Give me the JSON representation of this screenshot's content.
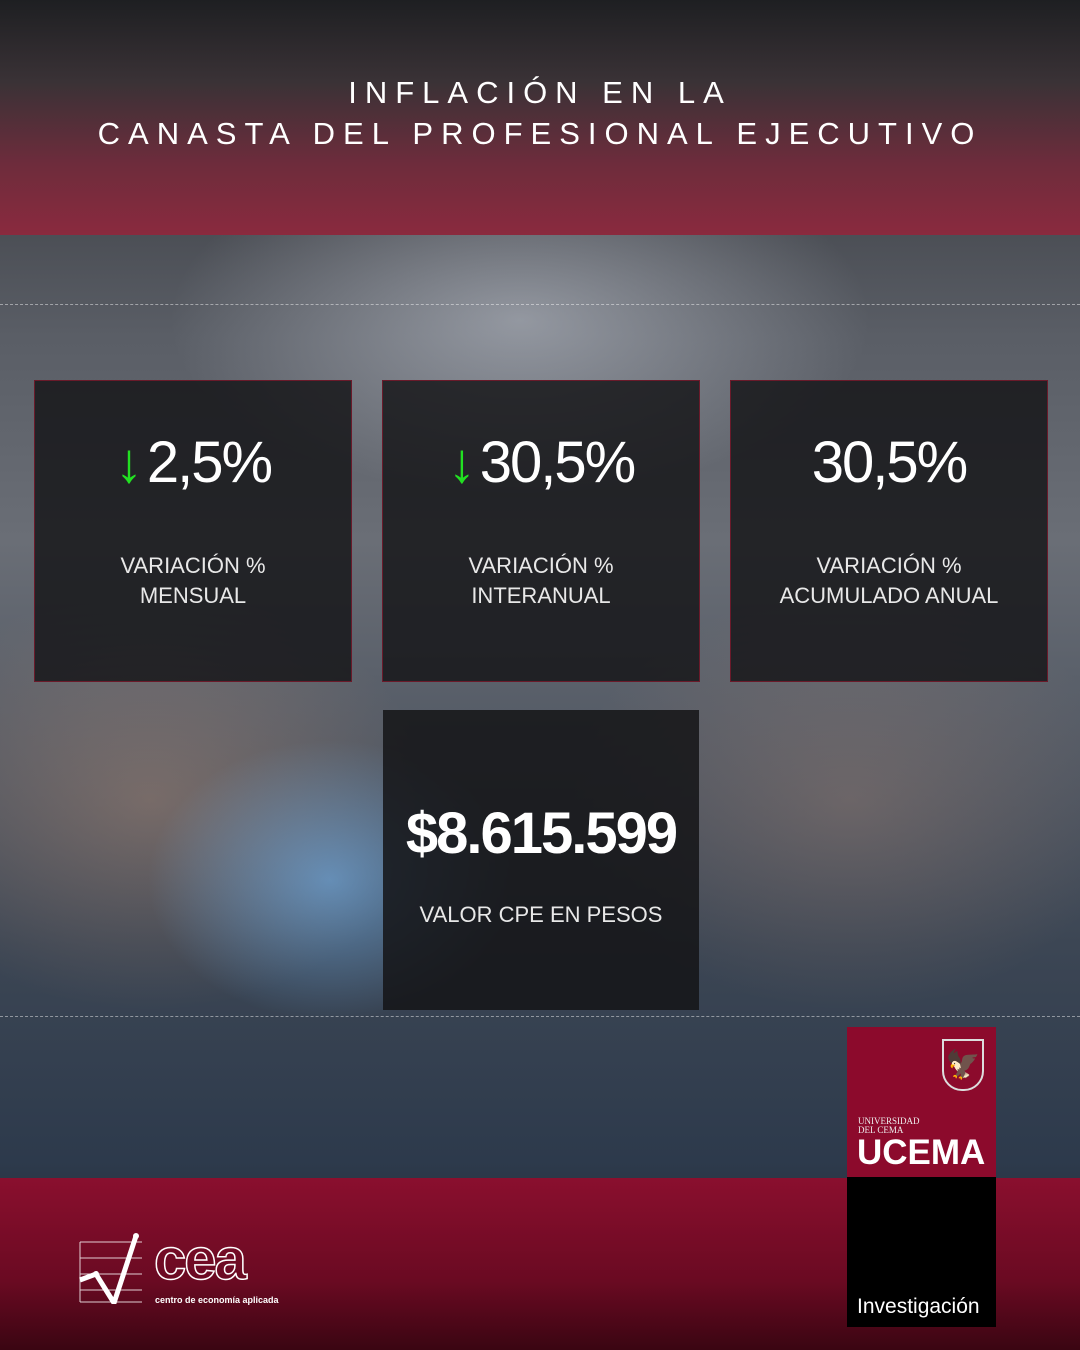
{
  "title": {
    "line1": "INFLACIÓN EN LA",
    "line2": "CANASTA DEL PROFESIONAL EJECUTIVO"
  },
  "cards": [
    {
      "value": "2,5%",
      "trend": "down",
      "label1": "VARIACIÓN %",
      "label2": "MENSUAL"
    },
    {
      "value": "30,5%",
      "trend": "down",
      "label1": "VARIACIÓN %",
      "label2": "INTERANUAL"
    },
    {
      "value": "30,5%",
      "trend": "none",
      "label1": "VARIACIÓN %",
      "label2": "ACUMULADO ANUAL"
    }
  ],
  "valor": {
    "amount": "$8.615.599",
    "label": "VALOR CPE EN PESOS"
  },
  "logos": {
    "ucema_small1": "UNIVERSIDAD",
    "ucema_small2": "DEL CEMA",
    "ucema": "UCEMA",
    "investigacion": "Investigación",
    "cea": "cea",
    "cea_sub": "centro de economía aplicada"
  },
  "colors": {
    "trend_down": "#22e022",
    "brand_red": "#8c0a2c"
  }
}
